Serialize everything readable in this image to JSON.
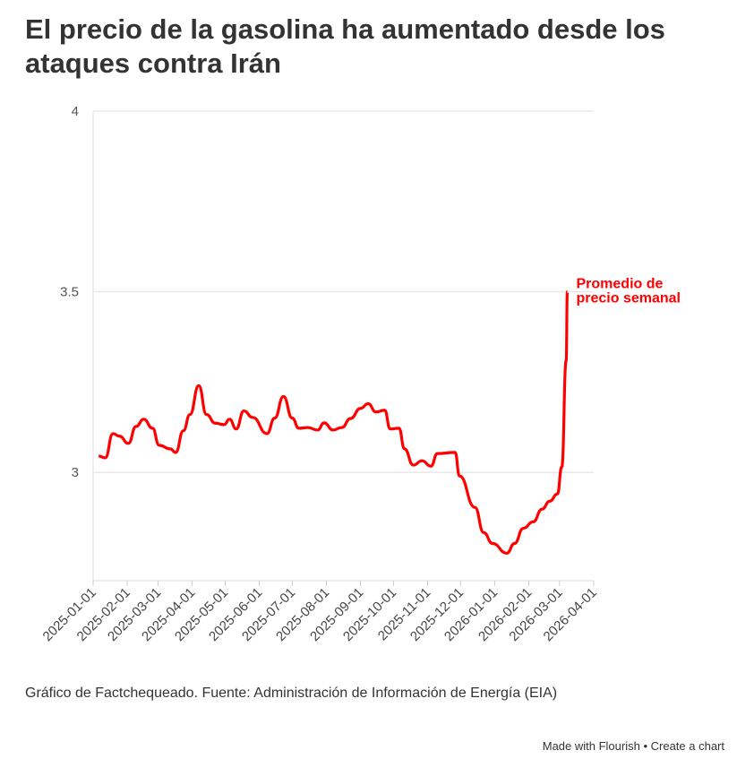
{
  "chart_data": {
    "type": "line",
    "title": "El precio de la gasolina ha aumentado desde los ataques contra Irán",
    "xlabel": "",
    "ylabel": "",
    "ylim": [
      2.7,
      4
    ],
    "yticks": [
      {
        "v": 3,
        "label": "3"
      },
      {
        "v": 3.5,
        "label": "3.5"
      },
      {
        "v": 4,
        "label": "4"
      }
    ],
    "xlim": [
      "2025-01-01",
      "2026-04-01"
    ],
    "xticks": [
      "2025-01-01",
      "2025-02-01",
      "2025-03-01",
      "2025-04-01",
      "2025-05-01",
      "2025-06-01",
      "2025-07-01",
      "2025-08-01",
      "2025-09-01",
      "2025-10-01",
      "2025-11-01",
      "2025-12-01",
      "2026-01-01",
      "2026-02-01",
      "2026-03-01",
      "2026-04-01"
    ],
    "grid": true,
    "series": [
      {
        "name": "Promedio de precio semanal",
        "color": "#ff0000",
        "label_lines": [
          "Promedio de",
          "precio semanal"
        ],
        "x": [
          "2025-01-06",
          "2025-01-12",
          "2025-01-19",
          "2025-01-25",
          "2025-02-02",
          "2025-02-09",
          "2025-02-16",
          "2025-02-24",
          "2025-03-02",
          "2025-03-12",
          "2025-03-17",
          "2025-03-24",
          "2025-03-30",
          "2025-04-07",
          "2025-04-14",
          "2025-04-22",
          "2025-04-30",
          "2025-05-05",
          "2025-05-11",
          "2025-05-18",
          "2025-05-26",
          "2025-06-08",
          "2025-06-15",
          "2025-06-23",
          "2025-07-01",
          "2025-07-07",
          "2025-07-15",
          "2025-07-24",
          "2025-07-30",
          "2025-08-07",
          "2025-08-15",
          "2025-08-23",
          "2025-09-01",
          "2025-09-08",
          "2025-09-15",
          "2025-09-23",
          "2025-09-28",
          "2025-10-06",
          "2025-10-11",
          "2025-10-19",
          "2025-10-27",
          "2025-11-04",
          "2025-11-10",
          "2025-11-26",
          "2025-11-30",
          "2025-12-14",
          "2025-12-22",
          "2025-12-30",
          "2026-01-12",
          "2026-01-19",
          "2026-01-27",
          "2026-02-05",
          "2026-02-13",
          "2026-02-20",
          "2026-02-27",
          "2026-03-03",
          "2026-03-07",
          "2026-03-08"
        ],
        "values": [
          3.045,
          3.04,
          3.107,
          3.1,
          3.08,
          3.127,
          3.147,
          3.122,
          3.075,
          3.065,
          3.055,
          3.115,
          3.16,
          3.24,
          3.16,
          3.136,
          3.132,
          3.147,
          3.12,
          3.17,
          3.152,
          3.107,
          3.15,
          3.21,
          3.15,
          3.122,
          3.124,
          3.117,
          3.137,
          3.117,
          3.124,
          3.149,
          3.177,
          3.19,
          3.167,
          3.172,
          3.12,
          3.122,
          3.065,
          3.02,
          3.032,
          3.017,
          3.052,
          3.055,
          2.99,
          2.903,
          2.833,
          2.803,
          2.776,
          2.803,
          2.845,
          2.863,
          2.898,
          2.92,
          2.94,
          3.015,
          3.31,
          3.5
        ]
      }
    ]
  },
  "source": "Gráfico de Factchequeado. Fuente: Administración de Información de Energía (EIA)",
  "footer": {
    "made_with": "Made with Flourish",
    "separator": " • ",
    "create": "Create a chart"
  }
}
